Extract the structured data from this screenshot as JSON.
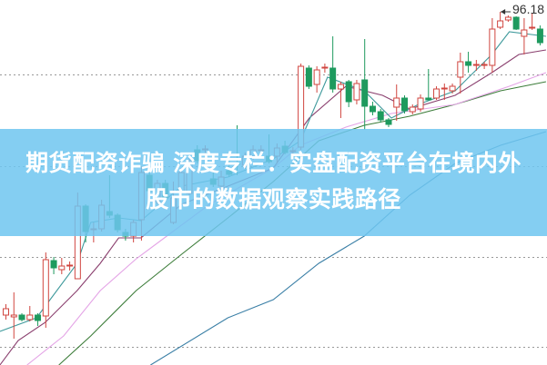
{
  "banner": {
    "line1": "期货配资诈骗 深度专栏：实盘配资平台在境内外",
    "line2": "股市的数据观察实践路径"
  },
  "chart_data": {
    "type": "candlestick",
    "title": "",
    "grid": true,
    "high_label": "96.18",
    "colors": {
      "up": "#d0453f",
      "down": "#1e9a5e",
      "ma5": "#3f9a9c",
      "ma10": "#8a3f6e",
      "ma20": "#e4a4e6",
      "ma30": "#3d7d3a",
      "ma60": "#3a7fa6",
      "banner": "#6ec6f0"
    },
    "candles": [
      [
        62.78,
        63.48,
        63.98,
        62.28
      ],
      [
        62.58,
        62.78,
        65.28,
        60.18
      ],
      [
        62.78,
        62.28,
        62.98,
        62.08
      ],
      [
        62.28,
        62.78,
        63.78,
        62.08
      ],
      [
        62.78,
        62.18,
        62.98,
        61.58
      ],
      [
        62.68,
        68.88,
        69.68,
        61.38
      ],
      [
        68.78,
        67.98,
        69.18,
        67.28
      ],
      [
        67.78,
        68.18,
        69.08,
        67.28
      ],
      [
        68.18,
        68.28,
        68.68,
        67.68
      ],
      [
        66.78,
        74.78,
        76.28,
        66.78
      ],
      [
        74.78,
        71.98,
        74.98,
        70.78
      ],
      [
        72.18,
        72.28,
        72.98,
        70.78
      ],
      [
        72.28,
        74.88,
        75.48,
        71.98
      ],
      [
        74.18,
        73.78,
        78.18,
        73.48
      ],
      [
        73.78,
        72.18,
        73.98,
        71.88
      ],
      [
        71.88,
        71.48,
        72.28,
        70.98
      ],
      [
        71.48,
        72.98,
        73.28,
        70.78
      ],
      [
        73.28,
        78.48,
        79.18,
        70.98
      ],
      [
        78.18,
        76.48,
        78.48,
        76.08
      ],
      [
        75.28,
        77.28,
        77.68,
        74.98
      ],
      [
        77.28,
        75.68,
        77.68,
        75.28
      ],
      [
        72.98,
        75.68,
        77.48,
        72.78
      ],
      [
        76.28,
        78.48,
        78.98,
        75.98
      ],
      [
        76.18,
        79.78,
        80.28,
        75.98
      ],
      [
        80.98,
        79.78,
        81.48,
        79.48
      ],
      [
        80.98,
        81.08,
        81.48,
        79.78
      ],
      [
        77.78,
        77.18,
        78.48,
        76.88
      ],
      [
        76.98,
        77.98,
        78.68,
        76.68
      ],
      [
        78.68,
        78.28,
        80.48,
        77.98
      ],
      [
        79.48,
        79.38,
        83.68,
        78.18
      ],
      [
        79.28,
        80.28,
        80.68,
        78.88
      ],
      [
        80.28,
        80.98,
        81.48,
        79.88
      ],
      [
        80.88,
        80.98,
        81.48,
        80.28
      ],
      [
        80.28,
        79.68,
        82.68,
        79.48
      ],
      [
        80.28,
        81.18,
        81.68,
        79.48
      ],
      [
        81.38,
        80.68,
        81.98,
        80.48
      ],
      [
        80.78,
        80.88,
        81.28,
        80.38
      ],
      [
        81.28,
        90.18,
        90.48,
        80.98
      ],
      [
        89.98,
        87.98,
        90.28,
        87.68
      ],
      [
        88.18,
        89.78,
        90.18,
        87.28
      ],
      [
        89.98,
        90.08,
        90.48,
        89.48
      ],
      [
        89.98,
        87.68,
        93.48,
        87.28
      ],
      [
        87.68,
        88.18,
        88.48,
        84.48
      ],
      [
        88.48,
        86.28,
        88.68,
        85.68
      ],
      [
        86.48,
        88.28,
        88.68,
        85.98
      ],
      [
        88.68,
        85.78,
        93.18,
        83.18
      ],
      [
        85.78,
        85.18,
        86.28,
        84.78
      ],
      [
        85.18,
        84.28,
        85.48,
        83.98
      ],
      [
        84.28,
        83.78,
        84.48,
        83.48
      ],
      [
        85.68,
        86.68,
        88.18,
        84.18
      ],
      [
        86.68,
        85.28,
        86.98,
        84.98
      ],
      [
        85.18,
        85.68,
        85.98,
        84.88
      ],
      [
        85.48,
        86.68,
        87.08,
        85.18
      ],
      [
        86.68,
        86.48,
        89.88,
        86.48
      ],
      [
        86.68,
        87.68,
        87.98,
        86.48
      ],
      [
        87.68,
        87.78,
        88.28,
        86.48
      ],
      [
        87.48,
        87.98,
        88.28,
        87.18
      ],
      [
        88.98,
        90.68,
        91.68,
        87.18
      ],
      [
        90.68,
        90.28,
        91.78,
        89.48
      ],
      [
        90.28,
        90.38,
        90.88,
        89.68
      ],
      [
        90.28,
        90.38,
        90.68,
        89.88
      ],
      [
        90.28,
        94.28,
        95.48,
        89.48
      ],
      [
        94.48,
        95.18,
        96.18,
        94.28
      ],
      [
        95.28,
        95.58,
        95.78,
        95.08
      ],
      [
        95.58,
        94.28,
        95.68,
        94.18
      ],
      [
        93.48,
        94.18,
        95.48,
        91.48
      ],
      [
        94.38,
        94.48,
        95.98,
        94.18
      ],
      [
        94.28,
        92.78,
        94.68,
        92.48
      ]
    ],
    "candle_fields": [
      "open",
      "close",
      "high",
      "low"
    ],
    "moving_averages": {
      "ma5": [
        [
          -0.7,
          60.98
        ],
        [
          3.9,
          62.48
        ],
        [
          9,
          68.48
        ],
        [
          10.7,
          72.98
        ],
        [
          14.2,
          73.48
        ],
        [
          17,
          73.18
        ],
        [
          22.1,
          76.98
        ],
        [
          27.9,
          77.98
        ],
        [
          33.6,
          79.98
        ],
        [
          37,
          81.98
        ],
        [
          40.4,
          88.98
        ],
        [
          45,
          87.48
        ],
        [
          48.4,
          84.48
        ],
        [
          51.8,
          85.98
        ],
        [
          56.4,
          87.48
        ],
        [
          61,
          91.48
        ],
        [
          63.2,
          93.98
        ],
        [
          67.8,
          93.48
        ]
      ],
      "ma10": [
        [
          -0.7,
          57.28
        ],
        [
          1.6,
          59.98
        ],
        [
          5,
          61.98
        ],
        [
          9,
          65.48
        ],
        [
          11.9,
          68.48
        ],
        [
          14.2,
          71.28
        ],
        [
          17,
          71.28
        ],
        [
          22.1,
          74.98
        ],
        [
          27.9,
          76.98
        ],
        [
          33.6,
          78.98
        ],
        [
          38.1,
          84.48
        ],
        [
          42.7,
          87.98
        ],
        [
          47.3,
          86.98
        ],
        [
          50.7,
          85.48
        ],
        [
          56.4,
          86.98
        ],
        [
          61,
          89.48
        ],
        [
          64.4,
          91.48
        ],
        [
          67.8,
          91.98
        ]
      ],
      "ma20": [
        [
          2.7,
          57.28
        ],
        [
          7.3,
          60.48
        ],
        [
          11.9,
          65.48
        ],
        [
          16.4,
          68.98
        ],
        [
          21,
          71.98
        ],
        [
          25.6,
          74.98
        ],
        [
          33.6,
          78.98
        ],
        [
          37,
          81.48
        ],
        [
          42.7,
          83.48
        ],
        [
          48.4,
          84.98
        ],
        [
          56.4,
          85.98
        ],
        [
          63.2,
          87.98
        ],
        [
          67.8,
          89.48
        ]
      ],
      "ma30": [
        [
          6.7,
          57.28
        ],
        [
          10.7,
          60.48
        ],
        [
          16.4,
          65.48
        ],
        [
          22.1,
          69.48
        ],
        [
          27.9,
          73.48
        ],
        [
          33.6,
          77.48
        ],
        [
          39.3,
          81.98
        ],
        [
          45,
          83.68
        ],
        [
          50.7,
          84.68
        ],
        [
          56.4,
          85.98
        ],
        [
          62.1,
          87.48
        ],
        [
          67.8,
          88.48
        ]
      ],
      "ma60": [
        [
          18.2,
          57.28
        ],
        [
          27.9,
          62.48
        ],
        [
          33.6,
          64.48
        ],
        [
          39.3,
          68.48
        ],
        [
          45,
          71.48
        ],
        [
          50.7,
          75.98
        ],
        [
          56.4,
          79.48
        ],
        [
          62.1,
          81.48
        ],
        [
          67.8,
          82.98
        ]
      ]
    }
  }
}
